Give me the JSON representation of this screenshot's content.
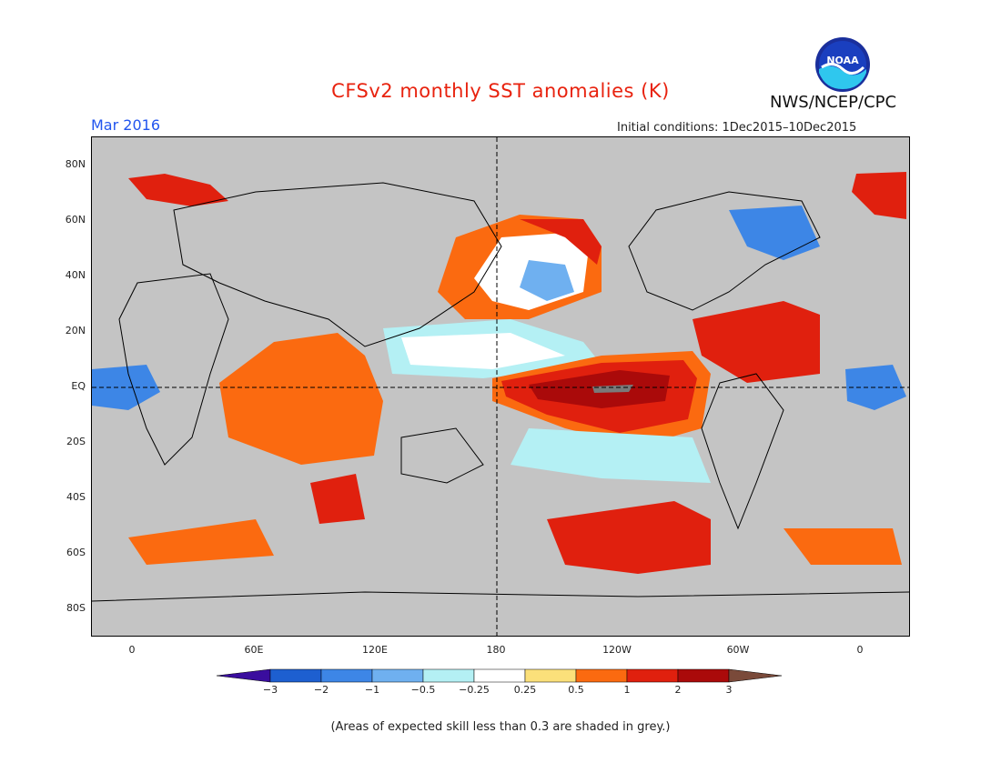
{
  "header": {
    "title": "CFSv2 monthly SST anomalies (K)",
    "agency": "NWS/NCEP/CPC",
    "date": "Mar 2016",
    "initial_conditions": "Initial conditions: 1Dec2015–10Dec2015"
  },
  "logo": {
    "text": "NOAA",
    "icon": "noaa-logo-icon"
  },
  "axes": {
    "lat_labels": [
      "80N",
      "60N",
      "40N",
      "20N",
      "EQ",
      "20S",
      "40S",
      "60S",
      "80S"
    ],
    "lon_labels": [
      "0",
      "60E",
      "120E",
      "180",
      "120W",
      "60W",
      "0"
    ]
  },
  "colorbar": {
    "ticks": [
      "−3",
      "−2",
      "−1",
      "−0.5",
      "−0.25",
      "0.25",
      "0.5",
      "1",
      "2",
      "3"
    ],
    "colors": [
      "#3a0d9e",
      "#1d5fd0",
      "#3d86e6",
      "#6fb0f0",
      "#b4f0f4",
      "#ffffff",
      "#fbe07a",
      "#fb6a10",
      "#e0200e",
      "#aa0a0a",
      "#7a4a3a"
    ]
  },
  "note": "(Areas of expected skill less than 0.3 are shaded in grey.)",
  "colors": {
    "title": "#e8220e",
    "date": "#2255ee",
    "skill_grey": "#c4c4c4"
  }
}
